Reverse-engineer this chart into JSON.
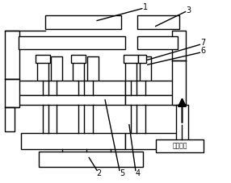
{
  "bg_color": "#ffffff",
  "line_color": "#000000",
  "lw": 1.0,
  "arrow_text": "进电方向",
  "figsize": [
    2.86,
    2.27
  ],
  "dpi": 100
}
